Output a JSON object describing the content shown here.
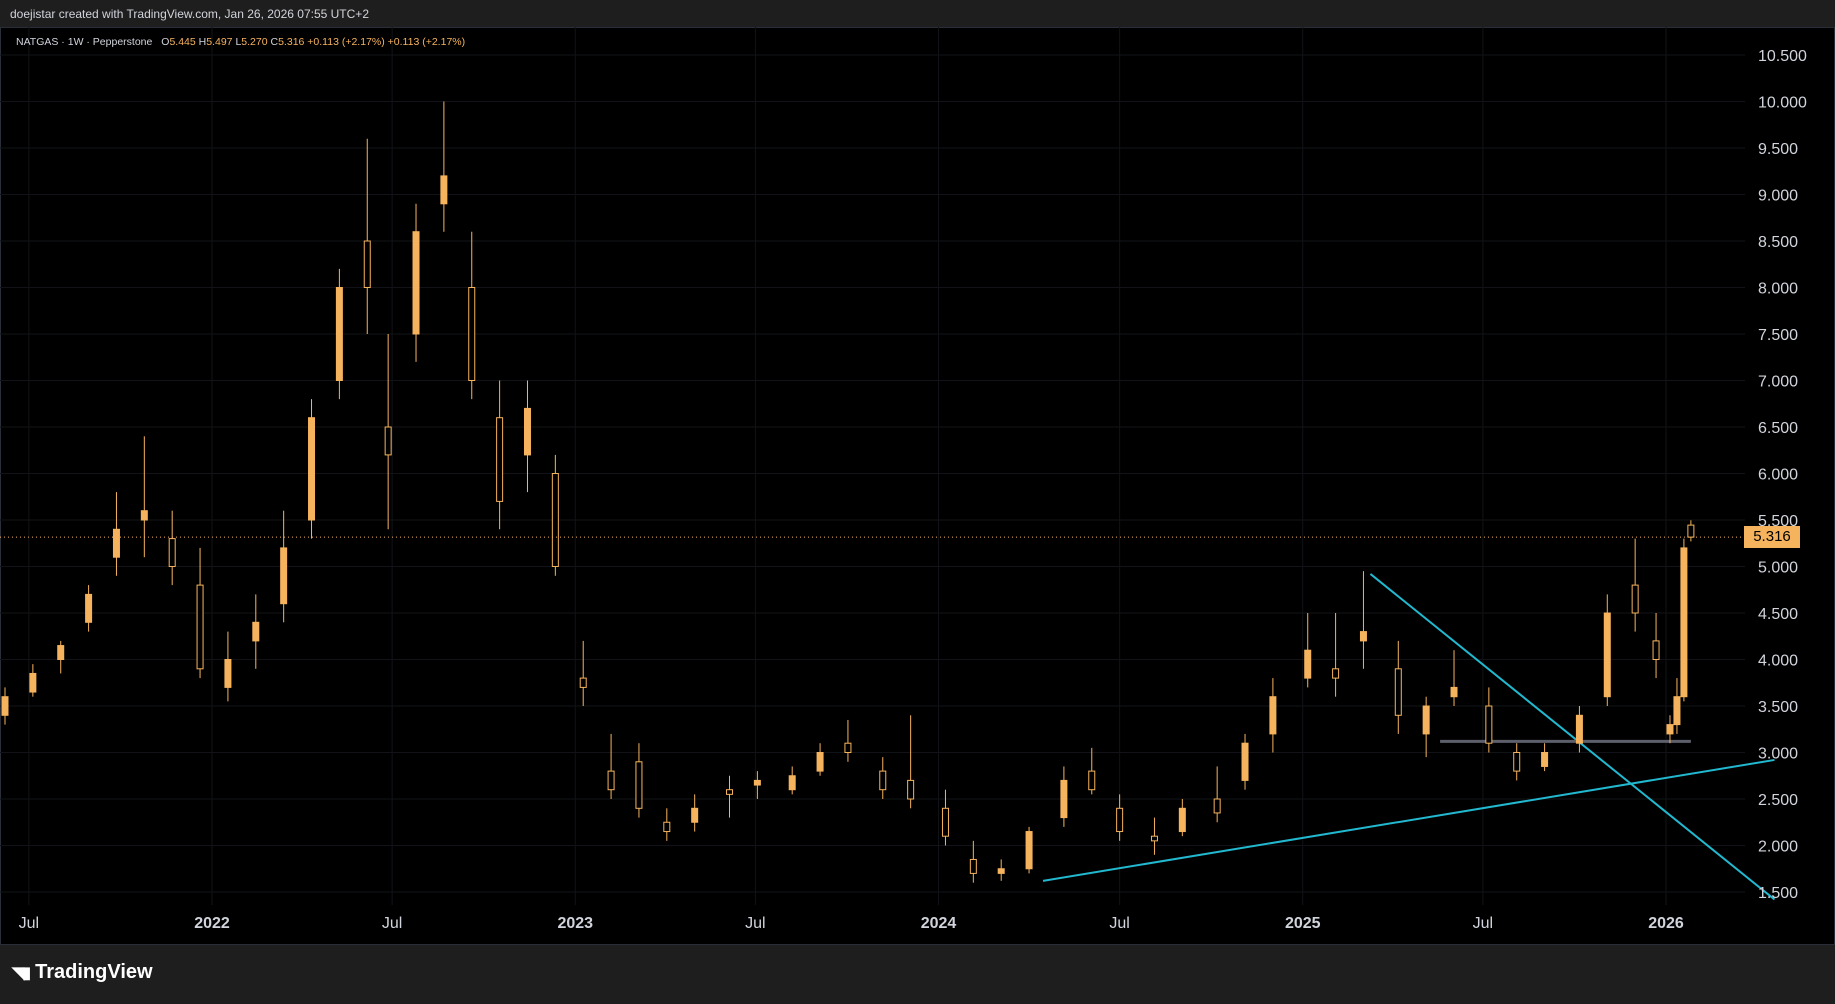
{
  "header": {
    "credit": "doejistar created with TradingView.com, Jan 26, 2026 07:55 UTC+2"
  },
  "legend": {
    "symbol": "NATGAS · 1W · Pepperstone",
    "o_label": "O",
    "o": "5.445",
    "h_label": "H",
    "h": "5.497",
    "l_label": "L",
    "l": "5.270",
    "c_label": "C",
    "c": "5.316",
    "change": "+0.113 (+2.17%)",
    "change2": "+0.113 (+2.17%)"
  },
  "footer": {
    "brand": "TradingView",
    "brand_icon": "tradingview-logo-icon"
  },
  "colors": {
    "candle": "#f6b35d",
    "trendline": "#22b8cf",
    "support": "#5d606b",
    "background": "#000000",
    "grid": "#111318"
  },
  "chart_data": {
    "type": "candlestick",
    "symbol": "NATGAS",
    "interval": "1W",
    "broker": "Pepperstone",
    "ylim": [
      1.35,
      10.85
    ],
    "y_ticks": [
      "10.500",
      "10.000",
      "9.500",
      "9.000",
      "8.500",
      "8.000",
      "7.500",
      "7.000",
      "6.500",
      "6.000",
      "5.500",
      "5.000",
      "4.500",
      "4.000",
      "3.500",
      "3.000",
      "2.500",
      "2.000",
      "1.500"
    ],
    "x_ticks": [
      {
        "label": "Jul",
        "date": "2021-07"
      },
      {
        "label": "2022",
        "date": "2022-01"
      },
      {
        "label": "Jul",
        "date": "2022-07"
      },
      {
        "label": "2023",
        "date": "2023-01"
      },
      {
        "label": "Jul",
        "date": "2023-07"
      },
      {
        "label": "2024",
        "date": "2024-01"
      },
      {
        "label": "Jul",
        "date": "2024-07"
      },
      {
        "label": "2025",
        "date": "2025-01"
      },
      {
        "label": "Jul",
        "date": "2025-07"
      },
      {
        "label": "2026",
        "date": "2026-01"
      }
    ],
    "last_price": "5.316",
    "candles": [
      [
        "2021-05-10",
        3.1,
        3.25,
        3.05,
        3.2
      ],
      [
        "2021-06-07",
        3.4,
        3.7,
        3.3,
        3.6
      ],
      [
        "2021-07-05",
        3.65,
        3.95,
        3.6,
        3.85
      ],
      [
        "2021-08-02",
        4.0,
        4.2,
        3.85,
        4.15
      ],
      [
        "2021-08-30",
        4.4,
        4.8,
        4.3,
        4.7
      ],
      [
        "2021-09-27",
        5.1,
        5.8,
        4.9,
        5.4
      ],
      [
        "2021-10-25",
        5.5,
        6.4,
        5.1,
        5.6
      ],
      [
        "2021-11-22",
        5.3,
        5.6,
        4.8,
        5.0
      ],
      [
        "2021-12-20",
        4.8,
        5.2,
        3.8,
        3.9
      ],
      [
        "2022-01-17",
        3.7,
        4.3,
        3.55,
        4.0
      ],
      [
        "2022-02-14",
        4.2,
        4.7,
        3.9,
        4.4
      ],
      [
        "2022-03-14",
        4.6,
        5.6,
        4.4,
        5.2
      ],
      [
        "2022-04-11",
        5.5,
        6.8,
        5.3,
        6.6
      ],
      [
        "2022-05-09",
        7.0,
        8.2,
        6.8,
        8.0
      ],
      [
        "2022-06-06",
        8.5,
        9.6,
        7.5,
        8.0
      ],
      [
        "2022-06-27",
        6.5,
        7.5,
        5.4,
        6.2
      ],
      [
        "2022-07-25",
        7.5,
        8.9,
        7.2,
        8.6
      ],
      [
        "2022-08-22",
        8.9,
        10.0,
        8.6,
        9.2
      ],
      [
        "2022-09-19",
        8.0,
        8.6,
        6.8,
        7.0
      ],
      [
        "2022-10-17",
        6.6,
        7.0,
        5.4,
        5.7
      ],
      [
        "2022-11-14",
        6.2,
        7.0,
        5.8,
        6.7
      ],
      [
        "2022-12-12",
        6.0,
        6.2,
        4.9,
        5.0
      ],
      [
        "2023-01-09",
        3.8,
        4.2,
        3.5,
        3.7
      ],
      [
        "2023-02-06",
        2.8,
        3.2,
        2.5,
        2.6
      ],
      [
        "2023-03-06",
        2.9,
        3.1,
        2.3,
        2.4
      ],
      [
        "2023-04-03",
        2.25,
        2.4,
        2.05,
        2.15
      ],
      [
        "2023-05-01",
        2.25,
        2.55,
        2.15,
        2.4
      ],
      [
        "2023-06-05",
        2.6,
        2.75,
        2.3,
        2.55
      ],
      [
        "2023-07-03",
        2.65,
        2.8,
        2.5,
        2.7
      ],
      [
        "2023-08-07",
        2.6,
        2.85,
        2.55,
        2.75
      ],
      [
        "2023-09-04",
        2.8,
        3.1,
        2.75,
        3.0
      ],
      [
        "2023-10-02",
        3.1,
        3.35,
        2.9,
        3.0
      ],
      [
        "2023-11-06",
        2.8,
        2.95,
        2.5,
        2.6
      ],
      [
        "2023-12-04",
        2.7,
        3.4,
        2.4,
        2.5
      ],
      [
        "2024-01-08",
        2.4,
        2.6,
        2.0,
        2.1
      ],
      [
        "2024-02-05",
        1.85,
        2.05,
        1.6,
        1.7
      ],
      [
        "2024-03-04",
        1.7,
        1.85,
        1.62,
        1.75
      ],
      [
        "2024-04-01",
        1.75,
        2.2,
        1.7,
        2.15
      ],
      [
        "2024-05-06",
        2.3,
        2.85,
        2.2,
        2.7
      ],
      [
        "2024-06-03",
        2.8,
        3.05,
        2.55,
        2.6
      ],
      [
        "2024-07-01",
        2.4,
        2.55,
        2.05,
        2.15
      ],
      [
        "2024-08-05",
        2.1,
        2.3,
        1.9,
        2.05
      ],
      [
        "2024-09-02",
        2.15,
        2.5,
        2.1,
        2.4
      ],
      [
        "2024-10-07",
        2.5,
        2.85,
        2.25,
        2.35
      ],
      [
        "2024-11-04",
        2.7,
        3.2,
        2.6,
        3.1
      ],
      [
        "2024-12-02",
        3.2,
        3.8,
        3.0,
        3.6
      ],
      [
        "2025-01-06",
        3.8,
        4.5,
        3.7,
        4.1
      ],
      [
        "2025-02-03",
        3.9,
        4.5,
        3.6,
        3.8
      ],
      [
        "2025-03-03",
        4.2,
        4.95,
        3.9,
        4.3
      ],
      [
        "2025-04-07",
        3.9,
        4.2,
        3.2,
        3.4
      ],
      [
        "2025-05-05",
        3.2,
        3.6,
        2.95,
        3.5
      ],
      [
        "2025-06-02",
        3.6,
        4.1,
        3.5,
        3.7
      ],
      [
        "2025-07-07",
        3.5,
        3.7,
        3.0,
        3.1
      ],
      [
        "2025-08-04",
        3.0,
        3.1,
        2.7,
        2.8
      ],
      [
        "2025-09-01",
        2.85,
        3.1,
        2.8,
        3.0
      ],
      [
        "2025-10-06",
        3.1,
        3.5,
        3.0,
        3.4
      ],
      [
        "2025-11-03",
        3.6,
        4.7,
        3.5,
        4.5
      ],
      [
        "2025-12-01",
        4.8,
        5.3,
        4.3,
        4.5
      ],
      [
        "2025-12-22",
        4.2,
        4.5,
        3.8,
        4.0
      ],
      [
        "2026-01-05",
        3.2,
        3.4,
        3.1,
        3.3
      ],
      [
        "2026-01-12",
        3.3,
        3.8,
        3.2,
        3.6
      ],
      [
        "2026-01-19",
        3.6,
        5.3,
        3.55,
        5.2
      ],
      [
        "2026-01-26",
        5.445,
        5.497,
        5.27,
        5.316
      ]
    ],
    "lines": [
      {
        "type": "support-trendline",
        "from": [
          "2024-04-15",
          1.62
        ],
        "to": [
          "2026-04-20",
          2.92
        ]
      },
      {
        "type": "resistance-trendline",
        "from": [
          "2025-03-10",
          4.92
        ],
        "to": [
          "2026-04-20",
          1.42
        ]
      },
      {
        "type": "horizontal-support",
        "from": [
          "2025-05-19",
          3.12
        ],
        "to": [
          "2026-01-26",
          3.12
        ]
      }
    ]
  }
}
